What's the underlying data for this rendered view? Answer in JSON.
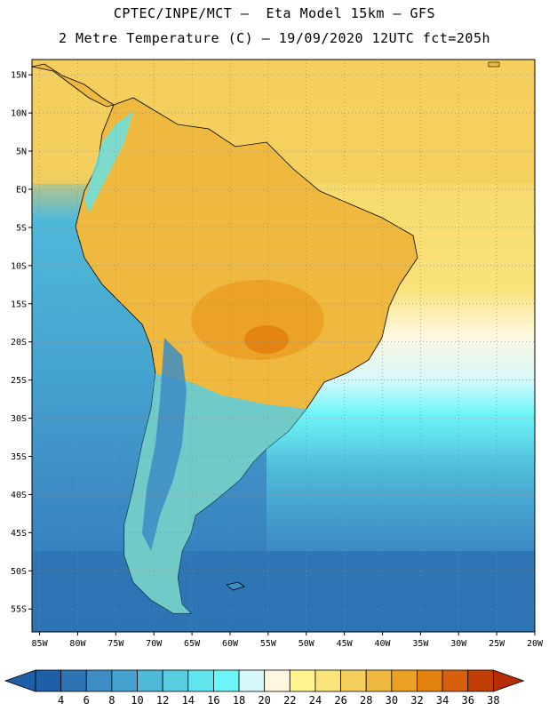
{
  "header": {
    "line1": "CPTEC/INPE/MCT –  Eta Model 15km – GFS",
    "line2": "2 Metre Temperature (C) – 19/09/2020 12UTC fct=205h"
  },
  "map": {
    "lon_range": [
      -86,
      -20
    ],
    "lat_range": [
      -58,
      17
    ],
    "lat_ticks": [
      "15N",
      "10N",
      "5N",
      "EQ",
      "5S",
      "10S",
      "15S",
      "20S",
      "25S",
      "30S",
      "35S",
      "40S",
      "45S",
      "50S",
      "55S"
    ],
    "lon_ticks": [
      "85W",
      "80W",
      "75W",
      "70W",
      "65W",
      "60W",
      "55W",
      "50W",
      "45W",
      "40W",
      "35W",
      "30W",
      "25W",
      "20W"
    ],
    "region": "South America"
  },
  "colorbar": {
    "levels": [
      "4",
      "6",
      "8",
      "10",
      "12",
      "14",
      "16",
      "18",
      "20",
      "22",
      "24",
      "26",
      "28",
      "30",
      "32",
      "34",
      "36",
      "38"
    ],
    "colors": [
      "#1f5fa8",
      "#2e74b5",
      "#3d8cc4",
      "#45a3cf",
      "#4fb9d9",
      "#58cce0",
      "#60e4ee",
      "#6cf5f8",
      "#d6f8fb",
      "#fff7e0",
      "#fff48e",
      "#f9e37a",
      "#f4cf5d",
      "#efb940",
      "#eaa023",
      "#e38110",
      "#d8600a",
      "#c23e07",
      "#b52c06"
    ]
  }
}
